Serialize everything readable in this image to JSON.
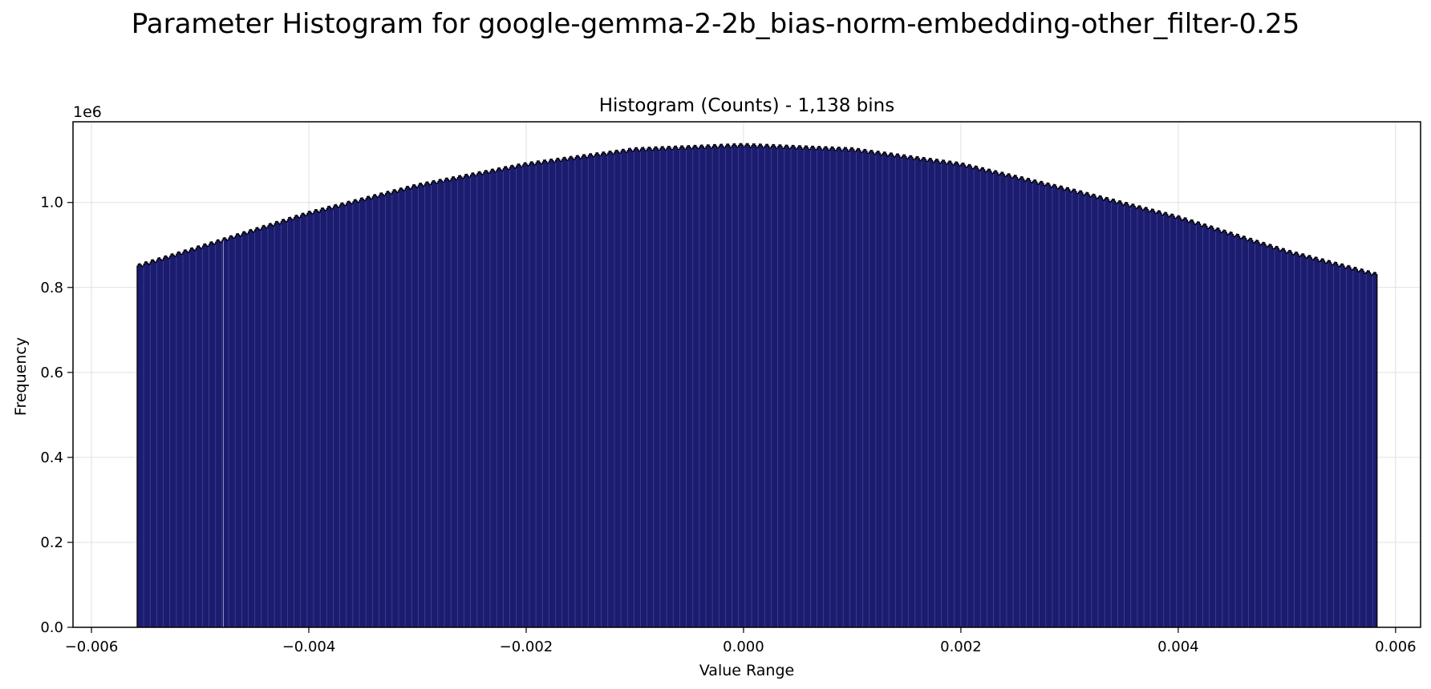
{
  "figure": {
    "suptitle": "Parameter Histogram for google-gemma-2-2b_bias-norm-embedding-other_filter-0.25"
  },
  "chart_data": {
    "type": "bar",
    "subtype": "histogram",
    "title": "Histogram (Counts) - 1,138 bins",
    "xlabel": "Value Range",
    "ylabel": "Frequency",
    "y_offset_label": "1e6",
    "bins": 1138,
    "xlim": [
      -0.00617,
      0.00623
    ],
    "ylim": [
      0,
      1.19
    ],
    "x_range": [
      -0.00558,
      0.00583
    ],
    "x_ticks": [
      -0.006,
      -0.004,
      -0.002,
      0.0,
      0.002,
      0.004,
      0.006
    ],
    "x_tick_labels": [
      "−0.006",
      "−0.004",
      "−0.002",
      "0.000",
      "0.002",
      "0.004",
      "0.006"
    ],
    "y_ticks": [
      0.0,
      0.2,
      0.4,
      0.6,
      0.8,
      1.0
    ],
    "y_tick_labels": [
      "0.0",
      "0.2",
      "0.4",
      "0.6",
      "0.8",
      "1.0"
    ],
    "profile": {
      "x": [
        -0.00558,
        -0.005,
        -0.004,
        -0.003,
        -0.002,
        -0.001,
        0.0,
        0.001,
        0.002,
        0.003,
        0.004,
        0.005,
        0.00583
      ],
      "y": [
        0.85,
        0.895,
        0.975,
        1.04,
        1.09,
        1.125,
        1.135,
        1.125,
        1.09,
        1.03,
        0.965,
        0.885,
        0.83
      ]
    },
    "grid": true,
    "legend": "none",
    "colors": {
      "bar_fill": "#1c1c6e",
      "bar_edge": "#000000",
      "bin_line": "#4f4fa8",
      "grid": "#e0e0e0"
    }
  }
}
